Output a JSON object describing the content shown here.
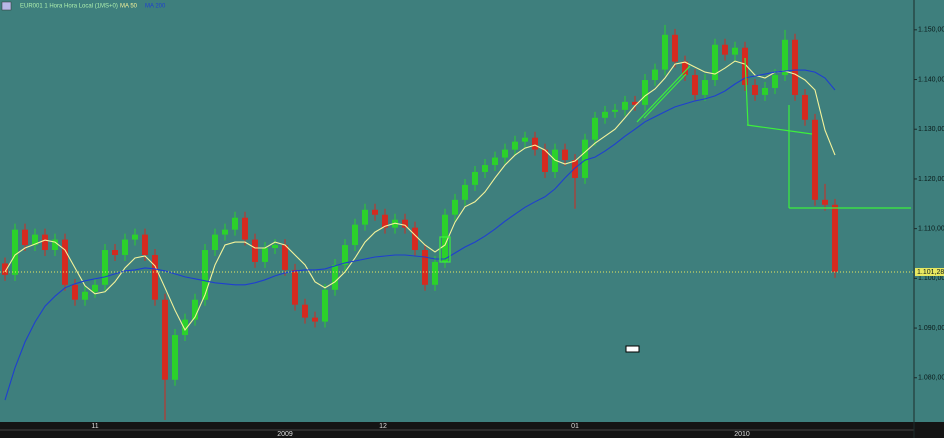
{
  "chart_data": {
    "type": "candlestick",
    "title": "EUR001 1 Hora Hora Local (1MS+0)",
    "ylim": [
      1.0711,
      1.156
    ],
    "xlim": [
      -0.5,
      90.9
    ],
    "yticks": [
      {
        "value": 1.08,
        "label": "1.080,00"
      },
      {
        "value": 1.09,
        "label": "1.090,00"
      },
      {
        "value": 1.1,
        "label": "1.100,00"
      },
      {
        "value": 1.11,
        "label": "1.110,00"
      },
      {
        "value": 1.12,
        "label": "1.120,00"
      },
      {
        "value": 1.13,
        "label": "1.130,00"
      },
      {
        "value": 1.14,
        "label": "1.140,00"
      },
      {
        "value": 1.15,
        "label": "1.150,00"
      }
    ],
    "xticks": [
      {
        "value": 9,
        "label": "11"
      },
      {
        "value": 37.8,
        "label": "12"
      },
      {
        "value": 57,
        "label": "01"
      }
    ],
    "xticks_years": [
      {
        "value": 28,
        "label": "2009"
      },
      {
        "value": 73.7,
        "label": "2010"
      }
    ],
    "last_price": {
      "value": 1.10128,
      "label": "1.101,28"
    },
    "up_color": "#2bd12b",
    "down_color": "#d42a20",
    "ohlc": {
      "open": [
        1.103,
        1.1007,
        1.1098,
        1.1067,
        1.1088,
        1.1057,
        1.1078,
        1.0987,
        1.0957,
        1.0973,
        1.0987,
        1.1057,
        1.1047,
        1.1078,
        1.1088,
        1.1047,
        1.0957,
        1.0796,
        1.0886,
        1.0917,
        1.0957,
        1.1057,
        1.1088,
        1.1098,
        1.1122,
        1.1078,
        1.1033,
        1.1061,
        1.1067,
        1.1017,
        1.0947,
        1.0921,
        1.0913,
        1.0977,
        1.1027,
        1.1067,
        1.1108,
        1.1138,
        1.1128,
        1.1102,
        1.1118,
        1.1102,
        1.1057,
        1.0987,
        1.1033,
        1.1128,
        1.1158,
        1.1188,
        1.1214,
        1.1228,
        1.1243,
        1.1259,
        1.1275,
        1.1283,
        1.1259,
        1.1214,
        1.1259,
        1.1238,
        1.1202,
        1.1279,
        1.1323,
        1.1335,
        1.1339,
        1.1355,
        1.1349,
        1.1399,
        1.142,
        1.149,
        1.1436,
        1.1409,
        1.1369,
        1.1399,
        1.147,
        1.145,
        1.1464,
        1.1389,
        1.1369,
        1.1383,
        1.1409,
        1.148,
        1.1369,
        1.1319,
        1.1158,
        1.1148
      ],
      "high": [
        1.1042,
        1.111,
        1.111,
        1.11,
        1.11,
        1.109,
        1.109,
        1.0999,
        1.0985,
        1.0999,
        1.1069,
        1.1069,
        1.109,
        1.11,
        1.11,
        1.1059,
        1.0969,
        1.0898,
        1.0929,
        1.0969,
        1.1069,
        1.11,
        1.111,
        1.1134,
        1.1134,
        1.109,
        1.1073,
        1.1079,
        1.1079,
        1.1029,
        1.0959,
        1.0933,
        1.0989,
        1.1039,
        1.1079,
        1.112,
        1.115,
        1.115,
        1.114,
        1.113,
        1.113,
        1.1114,
        1.1069,
        1.1045,
        1.114,
        1.117,
        1.12,
        1.1226,
        1.124,
        1.1255,
        1.1271,
        1.1287,
        1.1295,
        1.1295,
        1.1271,
        1.1271,
        1.1271,
        1.125,
        1.1291,
        1.1335,
        1.1347,
        1.1351,
        1.1367,
        1.1367,
        1.1411,
        1.1432,
        1.151,
        1.1502,
        1.1448,
        1.1421,
        1.1411,
        1.1482,
        1.1482,
        1.1476,
        1.1476,
        1.1401,
        1.1395,
        1.1421,
        1.15,
        1.1492,
        1.1381,
        1.1331,
        1.119,
        1.116
      ],
      "low": [
        1.0995,
        1.0995,
        1.1055,
        1.1055,
        1.1045,
        1.1045,
        1.0975,
        1.0945,
        1.0945,
        1.0961,
        1.0975,
        1.1035,
        1.1035,
        1.1066,
        1.1035,
        1.0945,
        1.0715,
        1.0784,
        1.0874,
        1.0905,
        1.0945,
        1.1045,
        1.1076,
        1.1086,
        1.1066,
        1.1021,
        1.1021,
        1.1049,
        1.1005,
        1.0935,
        1.0909,
        1.0901,
        1.0901,
        1.0965,
        1.1015,
        1.1055,
        1.1096,
        1.1116,
        1.109,
        1.109,
        1.109,
        1.1045,
        1.0975,
        1.0975,
        1.1021,
        1.1116,
        1.1146,
        1.1176,
        1.1202,
        1.1216,
        1.1231,
        1.1247,
        1.1263,
        1.1247,
        1.1202,
        1.1202,
        1.1226,
        1.114,
        1.119,
        1.1267,
        1.1311,
        1.1323,
        1.1327,
        1.1337,
        1.1337,
        1.1387,
        1.1408,
        1.1424,
        1.1397,
        1.1357,
        1.1357,
        1.1387,
        1.1438,
        1.1438,
        1.1377,
        1.1357,
        1.1357,
        1.1371,
        1.1397,
        1.1357,
        1.1307,
        1.1146,
        1.1136,
        1.1001
      ],
      "close": [
        1.1007,
        1.1098,
        1.1067,
        1.1088,
        1.1057,
        1.1078,
        1.0987,
        1.0957,
        1.0973,
        1.0987,
        1.1057,
        1.1047,
        1.1078,
        1.1088,
        1.1047,
        1.0957,
        1.0796,
        1.0886,
        1.0917,
        1.0957,
        1.1057,
        1.1088,
        1.1098,
        1.1122,
        1.1078,
        1.1033,
        1.1061,
        1.1067,
        1.1017,
        1.0947,
        1.0921,
        1.0913,
        1.0977,
        1.1027,
        1.1067,
        1.1108,
        1.1138,
        1.1128,
        1.1102,
        1.1118,
        1.1102,
        1.1057,
        1.0987,
        1.1033,
        1.1128,
        1.1158,
        1.1188,
        1.1214,
        1.1228,
        1.1243,
        1.1259,
        1.1275,
        1.1283,
        1.1259,
        1.1214,
        1.1259,
        1.1238,
        1.1202,
        1.1279,
        1.1323,
        1.1335,
        1.1339,
        1.1355,
        1.1349,
        1.1399,
        1.142,
        1.149,
        1.1436,
        1.1409,
        1.1369,
        1.1399,
        1.147,
        1.145,
        1.1464,
        1.1389,
        1.1369,
        1.1383,
        1.1409,
        1.148,
        1.1369,
        1.1319,
        1.1158,
        1.1148,
        1.1013
      ]
    },
    "series": [
      {
        "name": "MA 50",
        "color": "#f4f39a",
        "values": [
          1.1013,
          1.1047,
          1.1061,
          1.1069,
          1.1077,
          1.1073,
          1.1057,
          1.1021,
          1.0985,
          1.0969,
          1.0973,
          1.0993,
          1.1021,
          1.1041,
          1.1045,
          1.1025,
          1.0981,
          1.0936,
          1.0896,
          1.0922,
          1.0967,
          1.1027,
          1.1067,
          1.1073,
          1.1073,
          1.1061,
          1.1061,
          1.1073,
          1.1067,
          1.1047,
          1.1027,
          1.0993,
          1.0981,
          1.0993,
          1.1013,
          1.1041,
          1.1073,
          1.1093,
          1.1105,
          1.1111,
          1.1107,
          1.1087,
          1.1067,
          1.1053,
          1.1067,
          1.1113,
          1.1144,
          1.1154,
          1.1174,
          1.1202,
          1.1228,
          1.1248,
          1.1262,
          1.1268,
          1.1258,
          1.1238,
          1.123,
          1.1236,
          1.1254,
          1.1272,
          1.1286,
          1.13,
          1.1323,
          1.1347,
          1.1367,
          1.1381,
          1.1403,
          1.1431,
          1.1435,
          1.1425,
          1.1415,
          1.1411,
          1.1423,
          1.1437,
          1.1431,
          1.1409,
          1.1403,
          1.1415,
          1.1417,
          1.1411,
          1.1399,
          1.1379,
          1.1298,
          1.1248
        ]
      },
      {
        "name": "MA 200",
        "color": "#1f3fd0",
        "values": [
          1.0755,
          1.082,
          1.0872,
          1.0912,
          1.0944,
          1.0964,
          1.0981,
          1.0989,
          1.0995,
          1.0999,
          1.1003,
          1.1009,
          1.1015,
          1.1017,
          1.1021,
          1.1019,
          1.1015,
          1.1009,
          1.1003,
          1.0999,
          1.0995,
          1.0991,
          1.0989,
          1.0987,
          1.0987,
          1.0991,
          1.0997,
          1.1005,
          1.1011,
          1.1015,
          1.1017,
          1.1017,
          1.1019,
          1.1025,
          1.1031,
          1.1035,
          1.1039,
          1.1043,
          1.1045,
          1.1047,
          1.1047,
          1.1045,
          1.1043,
          1.1039,
          1.1039,
          1.1051,
          1.1063,
          1.1073,
          1.1085,
          1.1099,
          1.1115,
          1.1129,
          1.1143,
          1.1154,
          1.1164,
          1.118,
          1.1202,
          1.1222,
          1.1238,
          1.1244,
          1.1256,
          1.127,
          1.1286,
          1.13,
          1.1315,
          1.1325,
          1.1335,
          1.1345,
          1.1351,
          1.1357,
          1.1361,
          1.1367,
          1.1377,
          1.1391,
          1.1403,
          1.1407,
          1.1411,
          1.1415,
          1.1417,
          1.1419,
          1.1419,
          1.1415,
          1.1403,
          1.1379
        ]
      }
    ]
  }
}
